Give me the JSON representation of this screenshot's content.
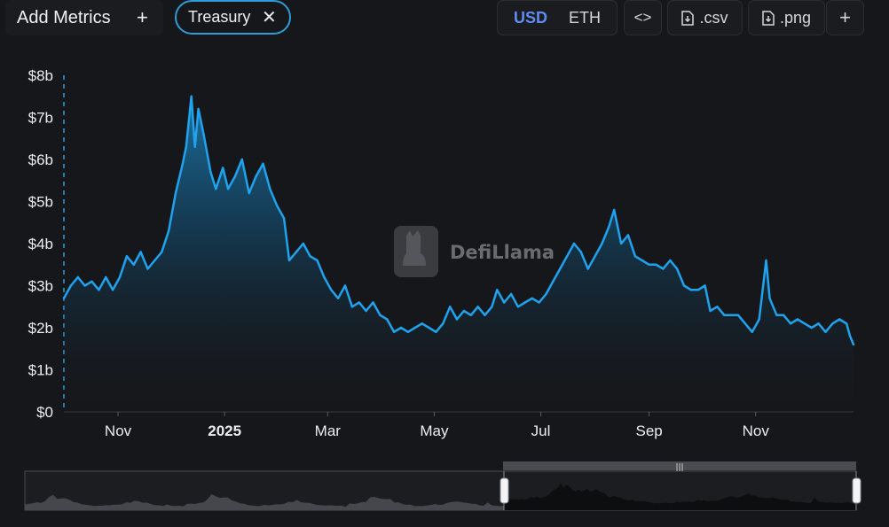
{
  "toolbar": {
    "add_metrics_label": "Add Metrics",
    "add_metrics_icon": "plus-icon",
    "metric_chip_label": "Treasury",
    "metric_chip_icon": "close-icon",
    "currency_usd": "USD",
    "currency_eth": "ETH",
    "active_currency": "USD",
    "embed_label": "<>",
    "csv_label": ".csv",
    "png_label": ".png",
    "more_label": "+"
  },
  "watermark": {
    "text": "DefiLlama"
  },
  "colors": {
    "accent": "#2f9bd8",
    "line": "#1fa3ee",
    "active_currency": "#5f8cf2"
  },
  "chart_data": {
    "type": "area",
    "title": "Treasury",
    "ylabel": "",
    "xlabel": "",
    "ylim": [
      0,
      8
    ],
    "y_ticks": [
      0,
      1,
      2,
      3,
      4,
      5,
      6,
      7,
      8
    ],
    "y_tick_labels": [
      "$0",
      "$1b",
      "$2b",
      "$3b",
      "$4b",
      "$5b",
      "$6b",
      "$7b",
      "$8b"
    ],
    "x_range": [
      "2024-10-01",
      "2025-12-27"
    ],
    "x_ticks": [
      {
        "date": "2024-11-01",
        "label": "Nov",
        "bold": false
      },
      {
        "date": "2025-01-01",
        "label": "2025",
        "bold": true
      },
      {
        "date": "2025-03-01",
        "label": "Mar",
        "bold": false
      },
      {
        "date": "2025-05-01",
        "label": "May",
        "bold": false
      },
      {
        "date": "2025-07-01",
        "label": "Jul",
        "bold": false
      },
      {
        "date": "2025-09-01",
        "label": "Sep",
        "bold": false
      },
      {
        "date": "2025-11-01",
        "label": "Nov",
        "bold": false
      }
    ],
    "series": [
      {
        "name": "Treasury (USD)",
        "unit": "billions USD",
        "points": [
          [
            "2024-10-01",
            2.7
          ],
          [
            "2024-10-05",
            3.0
          ],
          [
            "2024-10-09",
            3.2
          ],
          [
            "2024-10-13",
            3.0
          ],
          [
            "2024-10-17",
            3.1
          ],
          [
            "2024-10-21",
            2.9
          ],
          [
            "2024-10-25",
            3.2
          ],
          [
            "2024-10-29",
            2.9
          ],
          [
            "2024-11-02",
            3.2
          ],
          [
            "2024-11-06",
            3.7
          ],
          [
            "2024-11-10",
            3.5
          ],
          [
            "2024-11-14",
            3.8
          ],
          [
            "2024-11-18",
            3.4
          ],
          [
            "2024-11-22",
            3.6
          ],
          [
            "2024-11-26",
            3.8
          ],
          [
            "2024-11-30",
            4.3
          ],
          [
            "2024-12-04",
            5.2
          ],
          [
            "2024-12-08",
            5.9
          ],
          [
            "2024-12-10",
            6.3
          ],
          [
            "2024-12-13",
            7.5
          ],
          [
            "2024-12-15",
            6.3
          ],
          [
            "2024-12-17",
            7.2
          ],
          [
            "2024-12-20",
            6.6
          ],
          [
            "2024-12-24",
            5.7
          ],
          [
            "2024-12-27",
            5.3
          ],
          [
            "2024-12-31",
            5.8
          ],
          [
            "2025-01-03",
            5.3
          ],
          [
            "2025-01-07",
            5.6
          ],
          [
            "2025-01-11",
            6.0
          ],
          [
            "2025-01-15",
            5.2
          ],
          [
            "2025-01-19",
            5.6
          ],
          [
            "2025-01-23",
            5.9
          ],
          [
            "2025-01-27",
            5.3
          ],
          [
            "2025-01-31",
            4.9
          ],
          [
            "2025-02-04",
            4.6
          ],
          [
            "2025-02-07",
            3.6
          ],
          [
            "2025-02-11",
            3.8
          ],
          [
            "2025-02-15",
            4.0
          ],
          [
            "2025-02-19",
            3.7
          ],
          [
            "2025-02-23",
            3.6
          ],
          [
            "2025-02-27",
            3.2
          ],
          [
            "2025-03-03",
            2.9
          ],
          [
            "2025-03-07",
            2.7
          ],
          [
            "2025-03-11",
            3.0
          ],
          [
            "2025-03-15",
            2.5
          ],
          [
            "2025-03-19",
            2.6
          ],
          [
            "2025-03-23",
            2.4
          ],
          [
            "2025-03-27",
            2.6
          ],
          [
            "2025-03-31",
            2.3
          ],
          [
            "2025-04-04",
            2.2
          ],
          [
            "2025-04-08",
            1.9
          ],
          [
            "2025-04-12",
            2.0
          ],
          [
            "2025-04-16",
            1.9
          ],
          [
            "2025-04-20",
            2.0
          ],
          [
            "2025-04-24",
            2.1
          ],
          [
            "2025-04-28",
            2.0
          ],
          [
            "2025-05-02",
            1.9
          ],
          [
            "2025-05-06",
            2.1
          ],
          [
            "2025-05-10",
            2.5
          ],
          [
            "2025-05-14",
            2.2
          ],
          [
            "2025-05-18",
            2.4
          ],
          [
            "2025-05-22",
            2.3
          ],
          [
            "2025-05-26",
            2.5
          ],
          [
            "2025-05-30",
            2.3
          ],
          [
            "2025-06-03",
            2.5
          ],
          [
            "2025-06-06",
            2.9
          ],
          [
            "2025-06-10",
            2.6
          ],
          [
            "2025-06-14",
            2.8
          ],
          [
            "2025-06-18",
            2.5
          ],
          [
            "2025-06-22",
            2.6
          ],
          [
            "2025-06-26",
            2.7
          ],
          [
            "2025-06-30",
            2.6
          ],
          [
            "2025-07-04",
            2.8
          ],
          [
            "2025-07-08",
            3.1
          ],
          [
            "2025-07-12",
            3.4
          ],
          [
            "2025-07-16",
            3.7
          ],
          [
            "2025-07-20",
            4.0
          ],
          [
            "2025-07-24",
            3.8
          ],
          [
            "2025-07-28",
            3.4
          ],
          [
            "2025-08-01",
            3.7
          ],
          [
            "2025-08-05",
            4.0
          ],
          [
            "2025-08-09",
            4.4
          ],
          [
            "2025-08-12",
            4.8
          ],
          [
            "2025-08-16",
            4.0
          ],
          [
            "2025-08-20",
            4.2
          ],
          [
            "2025-08-24",
            3.7
          ],
          [
            "2025-08-28",
            3.6
          ],
          [
            "2025-09-01",
            3.5
          ],
          [
            "2025-09-05",
            3.5
          ],
          [
            "2025-09-09",
            3.4
          ],
          [
            "2025-09-13",
            3.6
          ],
          [
            "2025-09-17",
            3.4
          ],
          [
            "2025-09-21",
            3.0
          ],
          [
            "2025-09-25",
            2.9
          ],
          [
            "2025-09-29",
            2.9
          ],
          [
            "2025-10-03",
            3.0
          ],
          [
            "2025-10-06",
            2.4
          ],
          [
            "2025-10-10",
            2.5
          ],
          [
            "2025-10-14",
            2.3
          ],
          [
            "2025-10-18",
            2.3
          ],
          [
            "2025-10-22",
            2.3
          ],
          [
            "2025-10-26",
            2.1
          ],
          [
            "2025-10-30",
            1.9
          ],
          [
            "2025-11-03",
            2.2
          ],
          [
            "2025-11-07",
            3.6
          ],
          [
            "2025-11-09",
            2.7
          ],
          [
            "2025-11-13",
            2.3
          ],
          [
            "2025-11-17",
            2.3
          ],
          [
            "2025-11-21",
            2.1
          ],
          [
            "2025-11-25",
            2.2
          ],
          [
            "2025-11-29",
            2.1
          ],
          [
            "2025-12-03",
            2.0
          ],
          [
            "2025-12-07",
            2.1
          ],
          [
            "2025-12-11",
            1.9
          ],
          [
            "2025-12-15",
            2.1
          ],
          [
            "2025-12-19",
            2.2
          ],
          [
            "2025-12-23",
            2.1
          ],
          [
            "2025-12-25",
            1.8
          ],
          [
            "2025-12-27",
            1.6
          ]
        ]
      }
    ],
    "grid": false,
    "legend": "none"
  },
  "brush": {
    "selected_start": "2024-10-01",
    "selected_end": "2025-12-27",
    "handle_grip": "|||"
  }
}
